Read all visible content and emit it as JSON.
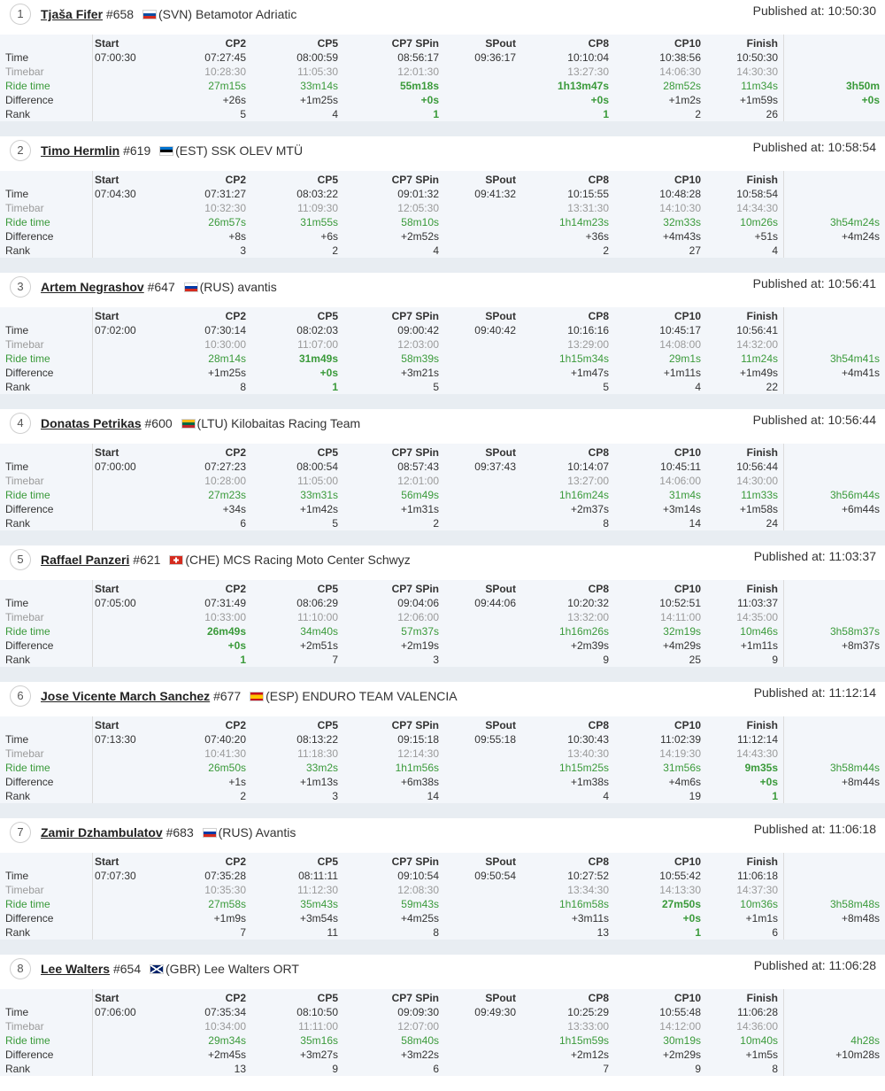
{
  "labels": {
    "time": "Time",
    "timebar": "Timebar",
    "ride_time": "Ride time",
    "difference": "Difference",
    "rank": "Rank",
    "published_prefix": "Published at: "
  },
  "columns": [
    "Start",
    "CP2",
    "CP5",
    "CP7 SPin",
    "SPout",
    "CP8",
    "CP10",
    "Finish"
  ],
  "colors": {
    "panel_bg": "#f3f6fa",
    "separator": "#e8edf2",
    "green": "#3a9a3a",
    "muted": "#9a9a9a"
  },
  "riders": [
    {
      "pos": "1",
      "name": "Tjaša Fifer",
      "number": "#658",
      "country": "(SVN)",
      "team": "Betamotor Adriatic",
      "flag": "svn-flag",
      "published": "10:50:30",
      "time": [
        "07:00:30",
        "07:27:45",
        "08:00:59",
        "08:56:17",
        "09:36:17",
        "10:10:04",
        "10:38:56",
        "10:50:30"
      ],
      "timebar": [
        "",
        "10:28:30",
        "11:05:30",
        "12:01:30",
        "",
        "13:27:30",
        "14:06:30",
        "14:30:30"
      ],
      "ride_time": [
        "",
        "27m15s",
        "33m14s",
        "55m18s",
        "",
        "1h13m47s",
        "28m52s",
        "11m34s"
      ],
      "difference": [
        "",
        "+26s",
        "+1m25s",
        "+0s",
        "",
        "+0s",
        "+1m2s",
        "+1m59s"
      ],
      "rank": [
        "",
        "5",
        "4",
        "1",
        "",
        "1",
        "2",
        "26"
      ],
      "total": "3h50m",
      "total_diff": "+0s",
      "bold": [
        "ride_time.3",
        "difference.3",
        "rank.3",
        "ride_time.5",
        "difference.5",
        "rank.5",
        "total",
        "total_diff"
      ]
    },
    {
      "pos": "2",
      "name": "Timo Hermlin",
      "number": "#619",
      "country": "(EST)",
      "team": "SSK OLEV MTÜ",
      "flag": "est-flag",
      "published": "10:58:54",
      "time": [
        "07:04:30",
        "07:31:27",
        "08:03:22",
        "09:01:32",
        "09:41:32",
        "10:15:55",
        "10:48:28",
        "10:58:54"
      ],
      "timebar": [
        "",
        "10:32:30",
        "11:09:30",
        "12:05:30",
        "",
        "13:31:30",
        "14:10:30",
        "14:34:30"
      ],
      "ride_time": [
        "",
        "26m57s",
        "31m55s",
        "58m10s",
        "",
        "1h14m23s",
        "32m33s",
        "10m26s"
      ],
      "difference": [
        "",
        "+8s",
        "+6s",
        "+2m52s",
        "",
        "+36s",
        "+4m43s",
        "+51s"
      ],
      "rank": [
        "",
        "3",
        "2",
        "4",
        "",
        "2",
        "27",
        "4"
      ],
      "total": "3h54m24s",
      "total_diff": "+4m24s",
      "bold": []
    },
    {
      "pos": "3",
      "name": "Artem Negrashov",
      "number": "#647",
      "country": "(RUS)",
      "team": "avantis",
      "flag": "rus-flag",
      "published": "10:56:41",
      "time": [
        "07:02:00",
        "07:30:14",
        "08:02:03",
        "09:00:42",
        "09:40:42",
        "10:16:16",
        "10:45:17",
        "10:56:41"
      ],
      "timebar": [
        "",
        "10:30:00",
        "11:07:00",
        "12:03:00",
        "",
        "13:29:00",
        "14:08:00",
        "14:32:00"
      ],
      "ride_time": [
        "",
        "28m14s",
        "31m49s",
        "58m39s",
        "",
        "1h15m34s",
        "29m1s",
        "11m24s"
      ],
      "difference": [
        "",
        "+1m25s",
        "+0s",
        "+3m21s",
        "",
        "+1m47s",
        "+1m11s",
        "+1m49s"
      ],
      "rank": [
        "",
        "8",
        "1",
        "5",
        "",
        "5",
        "4",
        "22"
      ],
      "total": "3h54m41s",
      "total_diff": "+4m41s",
      "bold": [
        "ride_time.2",
        "difference.2",
        "rank.2"
      ]
    },
    {
      "pos": "4",
      "name": "Donatas Petrikas",
      "number": "#600",
      "country": "(LTU)",
      "team": "Kilobaitas Racing Team",
      "flag": "ltu-flag",
      "published": "10:56:44",
      "time": [
        "07:00:00",
        "07:27:23",
        "08:00:54",
        "08:57:43",
        "09:37:43",
        "10:14:07",
        "10:45:11",
        "10:56:44"
      ],
      "timebar": [
        "",
        "10:28:00",
        "11:05:00",
        "12:01:00",
        "",
        "13:27:00",
        "14:06:00",
        "14:30:00"
      ],
      "ride_time": [
        "",
        "27m23s",
        "33m31s",
        "56m49s",
        "",
        "1h16m24s",
        "31m4s",
        "11m33s"
      ],
      "difference": [
        "",
        "+34s",
        "+1m42s",
        "+1m31s",
        "",
        "+2m37s",
        "+3m14s",
        "+1m58s"
      ],
      "rank": [
        "",
        "6",
        "5",
        "2",
        "",
        "8",
        "14",
        "24"
      ],
      "total": "3h56m44s",
      "total_diff": "+6m44s",
      "bold": []
    },
    {
      "pos": "5",
      "name": "Raffael Panzeri",
      "number": "#621",
      "country": "(CHE)",
      "team": "MCS Racing Moto Center Schwyz",
      "flag": "che-flag",
      "published": "11:03:37",
      "time": [
        "07:05:00",
        "07:31:49",
        "08:06:29",
        "09:04:06",
        "09:44:06",
        "10:20:32",
        "10:52:51",
        "11:03:37"
      ],
      "timebar": [
        "",
        "10:33:00",
        "11:10:00",
        "12:06:00",
        "",
        "13:32:00",
        "14:11:00",
        "14:35:00"
      ],
      "ride_time": [
        "",
        "26m49s",
        "34m40s",
        "57m37s",
        "",
        "1h16m26s",
        "32m19s",
        "10m46s"
      ],
      "difference": [
        "",
        "+0s",
        "+2m51s",
        "+2m19s",
        "",
        "+2m39s",
        "+4m29s",
        "+1m11s"
      ],
      "rank": [
        "",
        "1",
        "7",
        "3",
        "",
        "9",
        "25",
        "9"
      ],
      "total": "3h58m37s",
      "total_diff": "+8m37s",
      "bold": [
        "ride_time.1",
        "difference.1",
        "rank.1"
      ]
    },
    {
      "pos": "6",
      "name": "Jose Vicente March Sanchez",
      "number": "#677",
      "country": "(ESP)",
      "team": "ENDURO TEAM VALENCIA",
      "flag": "esp-flag",
      "published": "11:12:14",
      "time": [
        "07:13:30",
        "07:40:20",
        "08:13:22",
        "09:15:18",
        "09:55:18",
        "10:30:43",
        "11:02:39",
        "11:12:14"
      ],
      "timebar": [
        "",
        "10:41:30",
        "11:18:30",
        "12:14:30",
        "",
        "13:40:30",
        "14:19:30",
        "14:43:30"
      ],
      "ride_time": [
        "",
        "26m50s",
        "33m2s",
        "1h1m56s",
        "",
        "1h15m25s",
        "31m56s",
        "9m35s"
      ],
      "difference": [
        "",
        "+1s",
        "+1m13s",
        "+6m38s",
        "",
        "+1m38s",
        "+4m6s",
        "+0s"
      ],
      "rank": [
        "",
        "2",
        "3",
        "14",
        "",
        "4",
        "19",
        "1"
      ],
      "total": "3h58m44s",
      "total_diff": "+8m44s",
      "bold": [
        "ride_time.7",
        "difference.7",
        "rank.7"
      ]
    },
    {
      "pos": "7",
      "name": "Zamir Dzhambulatov",
      "number": "#683",
      "country": "(RUS)",
      "team": "Avantis",
      "flag": "rus-flag",
      "published": "11:06:18",
      "time": [
        "07:07:30",
        "07:35:28",
        "08:11:11",
        "09:10:54",
        "09:50:54",
        "10:27:52",
        "10:55:42",
        "11:06:18"
      ],
      "timebar": [
        "",
        "10:35:30",
        "11:12:30",
        "12:08:30",
        "",
        "13:34:30",
        "14:13:30",
        "14:37:30"
      ],
      "ride_time": [
        "",
        "27m58s",
        "35m43s",
        "59m43s",
        "",
        "1h16m58s",
        "27m50s",
        "10m36s"
      ],
      "difference": [
        "",
        "+1m9s",
        "+3m54s",
        "+4m25s",
        "",
        "+3m11s",
        "+0s",
        "+1m1s"
      ],
      "rank": [
        "",
        "7",
        "11",
        "8",
        "",
        "13",
        "1",
        "6"
      ],
      "total": "3h58m48s",
      "total_diff": "+8m48s",
      "bold": [
        "ride_time.6",
        "difference.6",
        "rank.6"
      ]
    },
    {
      "pos": "8",
      "name": "Lee Walters",
      "number": "#654",
      "country": "(GBR)",
      "team": "Lee Walters ORT",
      "flag": "gbr-flag",
      "published": "11:06:28",
      "time": [
        "07:06:00",
        "07:35:34",
        "08:10:50",
        "09:09:30",
        "09:49:30",
        "10:25:29",
        "10:55:48",
        "11:06:28"
      ],
      "timebar": [
        "",
        "10:34:00",
        "11:11:00",
        "12:07:00",
        "",
        "13:33:00",
        "14:12:00",
        "14:36:00"
      ],
      "ride_time": [
        "",
        "29m34s",
        "35m16s",
        "58m40s",
        "",
        "1h15m59s",
        "30m19s",
        "10m40s"
      ],
      "difference": [
        "",
        "+2m45s",
        "+3m27s",
        "+3m22s",
        "",
        "+2m12s",
        "+2m29s",
        "+1m5s"
      ],
      "rank": [
        "",
        "13",
        "9",
        "6",
        "",
        "7",
        "9",
        "8"
      ],
      "total": "4h28s",
      "total_diff": "+10m28s",
      "bold": []
    }
  ]
}
